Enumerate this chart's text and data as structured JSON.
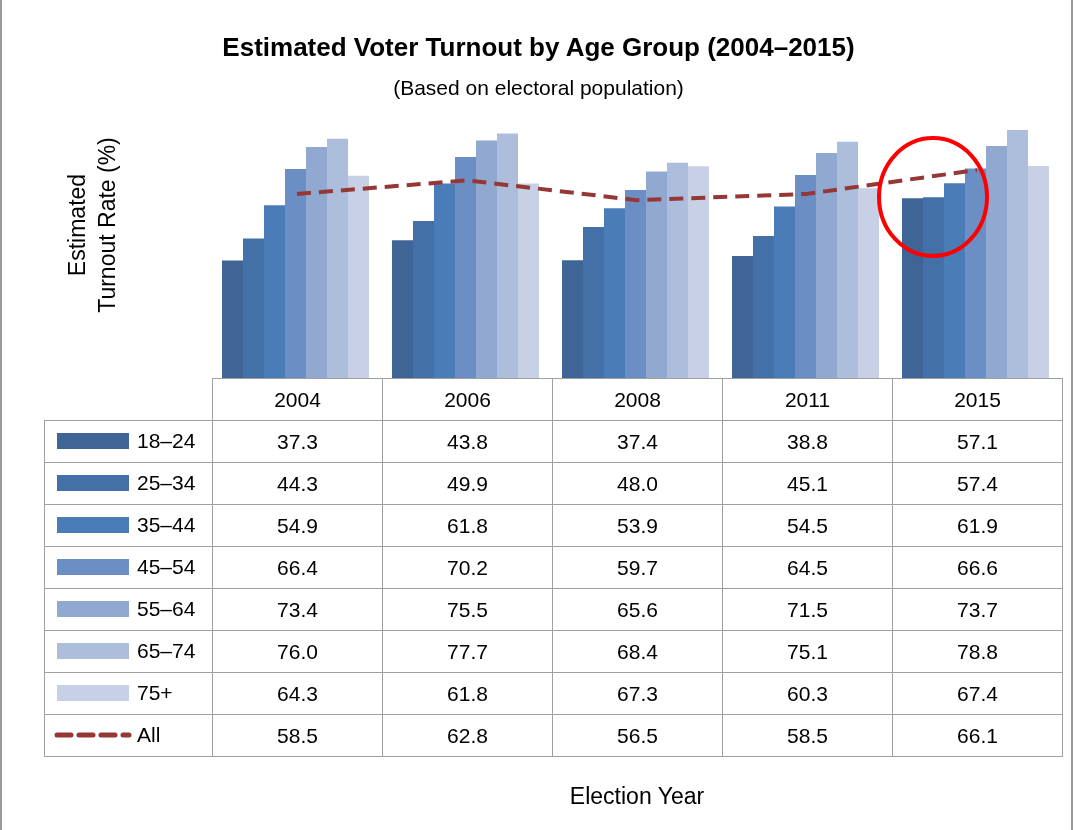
{
  "chart_data": {
    "type": "bar",
    "title": "Estimated Voter Turnout by Age Group (2004–2015)",
    "subtitle": "(Based on electoral population)",
    "ylabel": "Estimated Turnout Rate (%)",
    "annotations": [
      "Election Year"
    ],
    "categories": [
      "2004",
      "2006",
      "2008",
      "2011",
      "2015"
    ],
    "series": [
      {
        "name": "18–24",
        "color": "#3e6596",
        "values": [
          37.3,
          43.8,
          37.4,
          38.8,
          57.1
        ],
        "value_labels": [
          "37.3",
          "43.8",
          "37.4",
          "38.8",
          "57.1"
        ]
      },
      {
        "name": "25–34",
        "color": "#4370a6",
        "values": [
          44.3,
          49.9,
          48.0,
          45.1,
          57.4
        ],
        "value_labels": [
          "44.3",
          "49.9",
          "48.0",
          "45.1",
          "57.4"
        ]
      },
      {
        "name": "35–44",
        "color": "#4a7cb8",
        "values": [
          54.9,
          61.8,
          53.9,
          54.5,
          61.9
        ],
        "value_labels": [
          "54.9",
          "61.8",
          "53.9",
          "54.5",
          "61.9"
        ]
      },
      {
        "name": "45–54",
        "color": "#6b8fc4",
        "values": [
          66.4,
          70.2,
          59.7,
          64.5,
          66.6
        ],
        "value_labels": [
          "66.4",
          "70.2",
          "59.7",
          "64.5",
          "66.6"
        ]
      },
      {
        "name": "55–64",
        "color": "#91a8d1",
        "values": [
          73.4,
          75.5,
          65.6,
          71.5,
          73.7
        ],
        "value_labels": [
          "73.4",
          "75.5",
          "65.6",
          "71.5",
          "73.7"
        ]
      },
      {
        "name": "65–74",
        "color": "#adbedc",
        "values": [
          76.0,
          77.7,
          68.4,
          75.1,
          78.8
        ],
        "value_labels": [
          "76.0",
          "77.7",
          "68.4",
          "75.1",
          "78.8"
        ]
      },
      {
        "name": "75+",
        "color": "#c7d0e4",
        "values": [
          64.3,
          61.8,
          67.3,
          60.3,
          67.4
        ],
        "value_labels": [
          "64.3",
          "61.8",
          "67.3",
          "60.3",
          "67.4"
        ]
      },
      {
        "name": "All",
        "type": "line",
        "color": "#953735",
        "line_style": "dashed",
        "values": [
          58.5,
          62.8,
          56.5,
          58.5,
          66.1
        ],
        "value_labels": [
          "58.5",
          "62.8",
          "56.5",
          "58.5",
          "66.1"
        ]
      }
    ],
    "legend": "bottom left"
  }
}
